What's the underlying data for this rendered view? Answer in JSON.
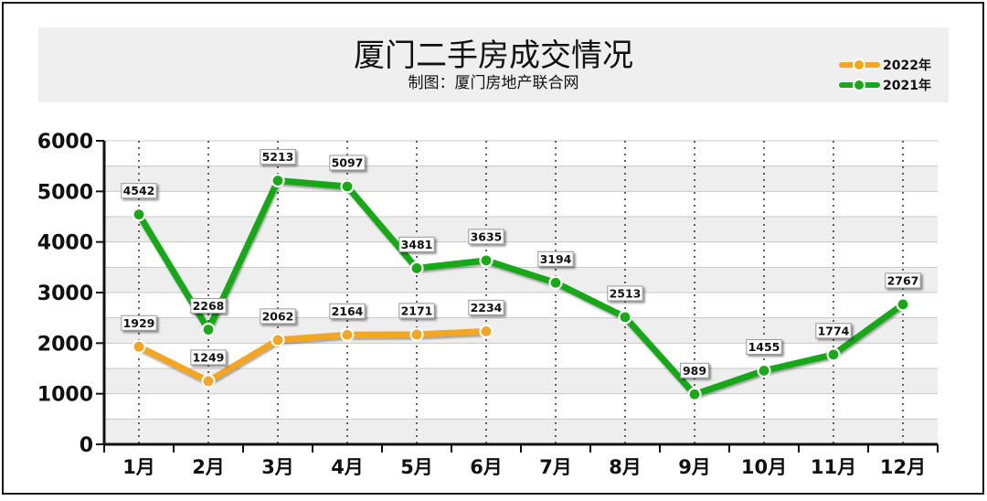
{
  "chart_data": {
    "type": "line",
    "title": "厦门二手房成交情况",
    "subtitle": "制图：厦门房地产联合网",
    "categories": [
      "1月",
      "2月",
      "3月",
      "4月",
      "5月",
      "6月",
      "7月",
      "8月",
      "9月",
      "10月",
      "11月",
      "12月"
    ],
    "series": [
      {
        "name": "2022年",
        "color": "#f2a623",
        "values": [
          1929,
          1249,
          2062,
          2164,
          2171,
          2234,
          null,
          null,
          null,
          null,
          null,
          null
        ]
      },
      {
        "name": "2021年",
        "color": "#18a818",
        "values": [
          4542,
          2268,
          5213,
          5097,
          3481,
          3635,
          3194,
          2513,
          989,
          1455,
          1774,
          2767
        ]
      }
    ],
    "ylim": [
      0,
      6000
    ],
    "yticks": [
      0,
      1000,
      2000,
      3000,
      4000,
      5000,
      6000
    ],
    "xlabel": "",
    "ylabel": "",
    "grid": true,
    "legend_position": "top-right"
  }
}
